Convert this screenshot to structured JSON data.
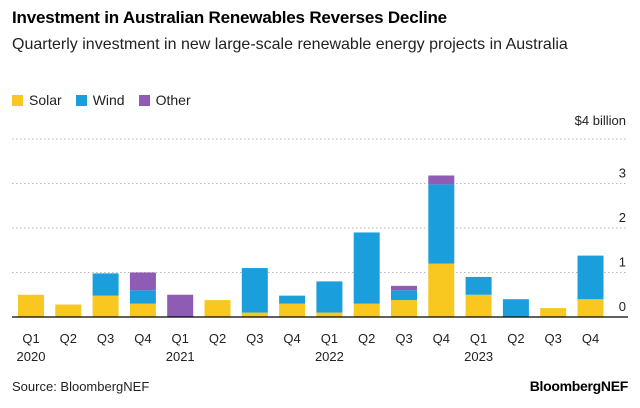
{
  "header": {
    "title": "Investment in Australian Renewables Reverses Decline",
    "subtitle": "Quarterly investment in new large-scale renewable energy projects in Australia"
  },
  "legend": [
    {
      "label": "Solar",
      "color": "#F8C820"
    },
    {
      "label": "Wind",
      "color": "#1A9FDC"
    },
    {
      "label": "Other",
      "color": "#8E5BB5"
    }
  ],
  "footer": {
    "source": "Source: BloombergNEF",
    "brand": "BloombergNEF"
  },
  "chart_data": {
    "type": "bar",
    "stacked": true,
    "title": "Investment in Australian Renewables Reverses Decline",
    "subtitle": "Quarterly investment in new large-scale renewable energy projects in Australia",
    "xlabel": "",
    "ylabel": "$ billion",
    "ylim": [
      0,
      4
    ],
    "yticks": [
      0,
      1,
      2,
      3,
      4
    ],
    "ytick_labels": [
      "0",
      "1",
      "2",
      "3",
      "$4 billion"
    ],
    "categories": [
      "Q1",
      "Q2",
      "Q3",
      "Q4",
      "Q1",
      "Q2",
      "Q3",
      "Q4",
      "Q1",
      "Q2",
      "Q3",
      "Q4",
      "Q1",
      "Q2",
      "Q3",
      "Q4"
    ],
    "year_labels": [
      {
        "index": 0,
        "label": "2020"
      },
      {
        "index": 4,
        "label": "2021"
      },
      {
        "index": 8,
        "label": "2022"
      },
      {
        "index": 12,
        "label": "2023"
      }
    ],
    "series": [
      {
        "name": "Solar",
        "color": "#F8C820",
        "values": [
          0.5,
          0.28,
          0.48,
          0.3,
          0,
          0.38,
          0.1,
          0.3,
          0.1,
          0.3,
          0.38,
          1.2,
          0.5,
          0,
          0.2,
          0.4
        ]
      },
      {
        "name": "Wind",
        "color": "#1A9FDC",
        "values": [
          0,
          0,
          0.5,
          0.3,
          0,
          0,
          1.0,
          0.18,
          0.7,
          1.6,
          0.22,
          1.78,
          0.4,
          0.4,
          0,
          0.98
        ]
      },
      {
        "name": "Other",
        "color": "#8E5BB5",
        "values": [
          0,
          0,
          0,
          0.4,
          0.5,
          0,
          0,
          0,
          0,
          0,
          0.1,
          0.2,
          0,
          0,
          0,
          0
        ]
      }
    ],
    "grid": true,
    "legend_position": "top-left"
  }
}
